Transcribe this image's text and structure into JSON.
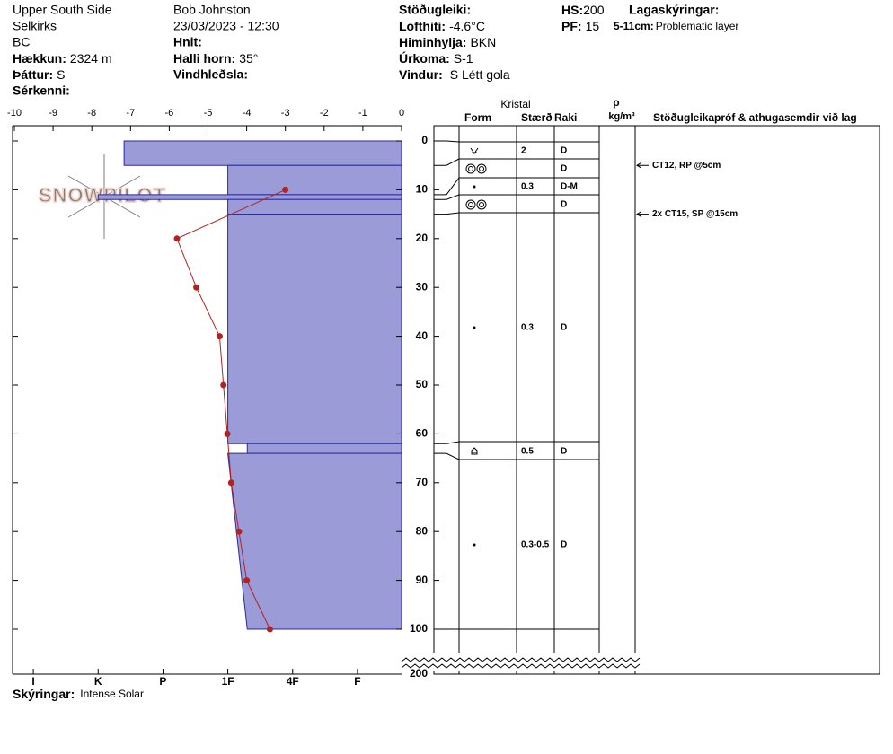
{
  "header": {
    "location": "Upper South Side",
    "range": "Selkirks",
    "state": "BC",
    "elevation": {
      "label": "Hækkun:",
      "value": "2324 m"
    },
    "aspect": {
      "label": "Þáttur:",
      "value": "S"
    },
    "features": {
      "label": "Sérkenni:"
    },
    "observer": "Bob Johnston",
    "datetime": "23/03/2023 - 12:30",
    "coords": {
      "label": "Hnit:"
    },
    "slope": {
      "label": "Halli horn:",
      "value": "35°"
    },
    "wind_loading": {
      "label": "Vindhleðsla:"
    },
    "stability": {
      "label": "Stöðugleiki:"
    },
    "air_temp": {
      "label": "Lofthiti:",
      "value": "-4.6°C"
    },
    "sky": {
      "label": "Himinhylja:",
      "value": "BKN"
    },
    "precip": {
      "label": "Úrkoma:",
      "value": "S-1"
    },
    "wind": {
      "label": "Vindur:",
      "value": "S Létt gola"
    },
    "hs": {
      "label": "HS:",
      "value": 200
    },
    "pf": {
      "label": "PF:",
      "value": 15
    },
    "layer_notes": {
      "label": "Lagaskýringar:"
    },
    "layer_note": {
      "label": "5-11cm:",
      "value": "Problematic layer"
    }
  },
  "logo": "SNOWPILOT",
  "table_header": {
    "crystal": "Kristal",
    "form": "Form",
    "size": "Stærð",
    "moisture": "Raki",
    "density": "ρ",
    "density_unit": "kg/m³",
    "comments": "Stöðugleikapróf & athugasemdir við lag"
  },
  "temp_lim": [
    -10,
    0
  ],
  "temp_ticks": [
    -10,
    -9,
    -8,
    -7,
    -6,
    -5,
    -4,
    -3,
    -2,
    -1,
    0
  ],
  "depth_lim": [
    0,
    100
  ],
  "depth_ticks": [
    0,
    10,
    20,
    30,
    40,
    50,
    60,
    70,
    80,
    90,
    100,
    200
  ],
  "hardness_lim": [
    0.32,
    6.32
  ],
  "hardness_ticks": [
    {
      "value": 6,
      "label": "I"
    },
    {
      "value": 5,
      "label": "K"
    },
    {
      "value": 4,
      "label": "P"
    },
    {
      "value": 3,
      "label": "1F"
    },
    {
      "value": 2,
      "label": "4F"
    },
    {
      "value": 1,
      "label": "F"
    }
  ],
  "colors": {
    "layer": "#9b9bd8",
    "layer_edge": "#2a2a9c",
    "temperature": "#b22222"
  },
  "layers": [
    {
      "top": 0,
      "bottom": 5,
      "hardness": 4.6,
      "size": 2,
      "moisture": "D"
    },
    {
      "top": 5,
      "bottom": 11,
      "hardness": 3,
      "size": null,
      "moisture": "D"
    },
    {
      "top": 11,
      "bottom": 12,
      "hardness": 5,
      "size": 0.3,
      "moisture": "D-M"
    },
    {
      "top": 12,
      "bottom": 15,
      "hardness": 3,
      "size": null,
      "moisture": "D"
    },
    {
      "top": 15,
      "bottom": 62,
      "hardness": 3,
      "size": 0.3,
      "moisture": "D"
    },
    {
      "top": 62,
      "bottom": 64,
      "hardness": 2.7,
      "size": 0.5,
      "moisture": "D"
    },
    {
      "top": 64,
      "bottom": 100,
      "hardness": 3,
      "hardness_bottom": 2.7,
      "size": "0.3-0.5",
      "moisture": "D"
    }
  ],
  "tests": [
    {
      "depth": 5,
      "label": "CT12, RP @5cm"
    },
    {
      "depth": 15,
      "label": "2x CT15, SP @15cm"
    }
  ],
  "temperature": {
    "depth": [
      10,
      20,
      30,
      40,
      50,
      60,
      70,
      80,
      90,
      100
    ],
    "temp": [
      -3,
      -5.8,
      -5.3,
      -4.7,
      -4.6,
      -4.5,
      -4.4,
      -4.2,
      -4,
      -3.4
    ]
  },
  "footer": {
    "label": "Skýringar:",
    "value": "Intense Solar"
  }
}
